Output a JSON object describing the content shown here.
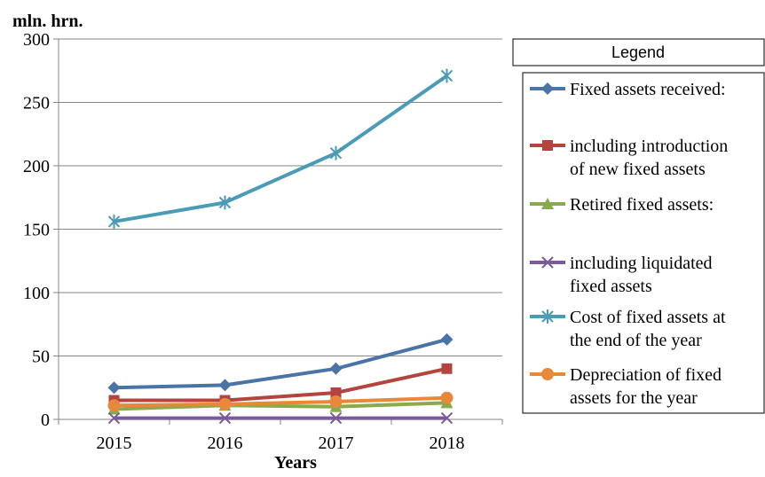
{
  "chart_data": {
    "type": "line",
    "title": "",
    "unit_label": "mln. hrn.",
    "xlabel": "Years",
    "ylabel": "",
    "categories": [
      "2015",
      "2016",
      "2017",
      "2018"
    ],
    "ylim": [
      0,
      300
    ],
    "yticks": [
      0,
      50,
      100,
      150,
      200,
      250,
      300
    ],
    "grid": true,
    "legend_title": "Legend",
    "legend_position": "right",
    "series": [
      {
        "name": "Fixed assets received:",
        "name_lines": [
          "Fixed assets received:"
        ],
        "values": [
          25,
          27,
          40,
          63
        ],
        "color": "#4a73a6",
        "marker": "diamond"
      },
      {
        "name": "including  introduction of new fixed assets",
        "name_lines": [
          "including  introduction",
          "of new fixed assets"
        ],
        "values": [
          15,
          15,
          21,
          40
        ],
        "color": "#b5443f",
        "marker": "square"
      },
      {
        "name": "Retired fixed assets:",
        "name_lines": [
          "Retired fixed assets:"
        ],
        "values": [
          8,
          11,
          10,
          13
        ],
        "color": "#8aab4b",
        "marker": "triangle"
      },
      {
        "name": "including liquidated fixed assets",
        "name_lines": [
          "including liquidated",
          "fixed assets"
        ],
        "values": [
          1,
          1,
          1,
          1
        ],
        "color": "#7a5a99",
        "marker": "x"
      },
      {
        "name": "Cost of fixed assets at the end of the year",
        "name_lines": [
          "Cost of fixed assets at",
          "the end of the year"
        ],
        "values": [
          156,
          171,
          210,
          271
        ],
        "color": "#4a9bb5",
        "marker": "star"
      },
      {
        "name": "Depreciation of fixed assets for the year",
        "name_lines": [
          "Depreciation of fixed",
          "assets for the year"
        ],
        "values": [
          11,
          12,
          14,
          17
        ],
        "color": "#e8893a",
        "marker": "circle"
      }
    ]
  }
}
